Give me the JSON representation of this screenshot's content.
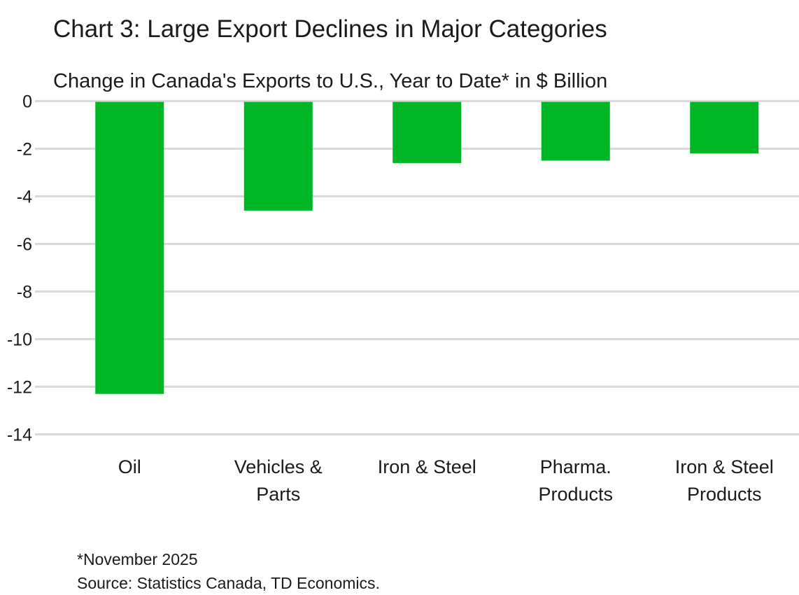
{
  "chart_data": {
    "type": "bar",
    "title": "Chart 3: Large Export Declines in Major Categories",
    "subtitle": "Change in Canada's Exports to U.S., Year to Date* in $ Billion",
    "categories": [
      [
        "Oil"
      ],
      [
        "Vehicles &",
        "Parts"
      ],
      [
        "Iron & Steel"
      ],
      [
        "Pharma.",
        "Products"
      ],
      [
        "Iron & Steel",
        "Products"
      ]
    ],
    "values": [
      -12.3,
      -4.6,
      -2.6,
      -2.5,
      -2.2
    ],
    "ylim": [
      -14,
      0
    ],
    "yticks": [
      0,
      -2,
      -4,
      -6,
      -8,
      -10,
      -12,
      -14
    ],
    "grid": true,
    "bar_color": "#00b624",
    "grid_color": "#d9d9d9"
  },
  "footnotes": {
    "note": "*November 2025",
    "source": "Source: Statistics Canada, TD Economics."
  }
}
